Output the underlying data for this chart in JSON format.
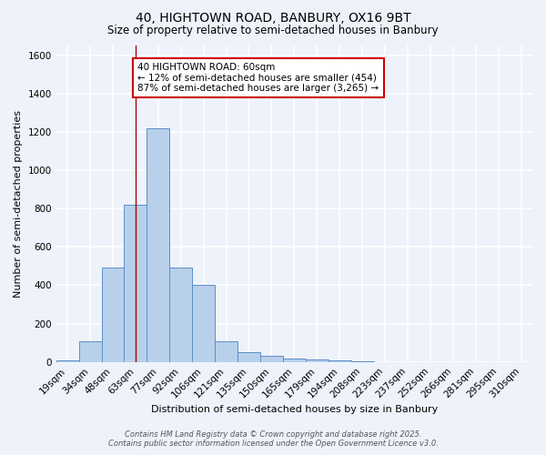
{
  "title_line1": "40, HIGHTOWN ROAD, BANBURY, OX16 9BT",
  "title_line2": "Size of property relative to semi-detached houses in Banbury",
  "xlabel": "Distribution of semi-detached houses by size in Banbury",
  "ylabel": "Number of semi-detached properties",
  "categories": [
    "19sqm",
    "34sqm",
    "48sqm",
    "63sqm",
    "77sqm",
    "92sqm",
    "106sqm",
    "121sqm",
    "135sqm",
    "150sqm",
    "165sqm",
    "179sqm",
    "194sqm",
    "208sqm",
    "223sqm",
    "237sqm",
    "252sqm",
    "266sqm",
    "281sqm",
    "295sqm",
    "310sqm"
  ],
  "values": [
    10,
    110,
    490,
    820,
    1220,
    490,
    400,
    110,
    50,
    30,
    20,
    15,
    10,
    5,
    0,
    0,
    0,
    0,
    0,
    0,
    0
  ],
  "bar_color": "#b8d0ea",
  "bar_edge_color": "#5b8fc9",
  "red_line_x": 3.0,
  "annotation_title": "40 HIGHTOWN ROAD: 60sqm",
  "annotation_line2": "← 12% of semi-detached houses are smaller (454)",
  "annotation_line3": "87% of semi-detached houses are larger (3,265) →",
  "annotation_box_color": "#ffffff",
  "annotation_box_edge": "#cc0000",
  "red_line_color": "#aa0000",
  "ylim": [
    0,
    1650
  ],
  "yticks": [
    0,
    200,
    400,
    600,
    800,
    1000,
    1200,
    1400,
    1600
  ],
  "background_color": "#eef2fb",
  "grid_color": "#ffffff",
  "footer_line1": "Contains HM Land Registry data © Crown copyright and database right 2025.",
  "footer_line2": "Contains public sector information licensed under the Open Government Licence v3.0."
}
